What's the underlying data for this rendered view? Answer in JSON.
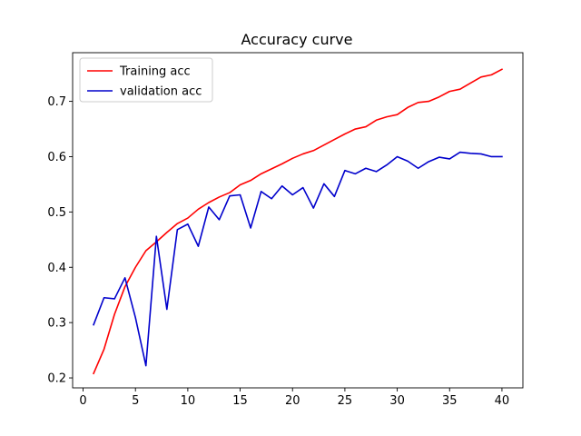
{
  "chart_data": {
    "type": "line",
    "title": "Accuracy curve",
    "xlabel": "",
    "ylabel": "",
    "xlim": [
      -1,
      42
    ],
    "ylim": [
      0.182,
      0.788
    ],
    "xticks": [
      0,
      5,
      10,
      15,
      20,
      25,
      30,
      35,
      40
    ],
    "yticks": [
      0.2,
      0.3,
      0.4,
      0.5,
      0.6,
      0.7
    ],
    "grid": false,
    "legend_position": "top-left",
    "x": [
      1,
      2,
      3,
      4,
      5,
      6,
      7,
      8,
      9,
      10,
      11,
      12,
      13,
      14,
      15,
      16,
      17,
      18,
      19,
      20,
      21,
      22,
      23,
      24,
      25,
      26,
      27,
      28,
      29,
      30,
      31,
      32,
      33,
      34,
      35,
      36,
      37,
      38,
      39,
      40
    ],
    "series": [
      {
        "name": "Training acc",
        "color": "#ff0000",
        "values": [
          0.208,
          0.252,
          0.315,
          0.365,
          0.4,
          0.43,
          0.446,
          0.463,
          0.479,
          0.489,
          0.505,
          0.517,
          0.527,
          0.535,
          0.549,
          0.557,
          0.569,
          0.578,
          0.587,
          0.597,
          0.605,
          0.611,
          0.621,
          0.631,
          0.641,
          0.65,
          0.654,
          0.666,
          0.672,
          0.676,
          0.689,
          0.698,
          0.7,
          0.708,
          0.718,
          0.722,
          0.733,
          0.744,
          0.748,
          0.758
        ]
      },
      {
        "name": "validation acc",
        "color": "#0000cc",
        "values": [
          0.296,
          0.345,
          0.343,
          0.381,
          0.309,
          0.222,
          0.456,
          0.324,
          0.468,
          0.478,
          0.438,
          0.509,
          0.486,
          0.529,
          0.531,
          0.471,
          0.537,
          0.524,
          0.547,
          0.531,
          0.544,
          0.507,
          0.551,
          0.528,
          0.575,
          0.569,
          0.579,
          0.573,
          0.585,
          0.6,
          0.592,
          0.579,
          0.591,
          0.599,
          0.596,
          0.608,
          0.606,
          0.605,
          0.6,
          0.6
        ]
      }
    ]
  }
}
